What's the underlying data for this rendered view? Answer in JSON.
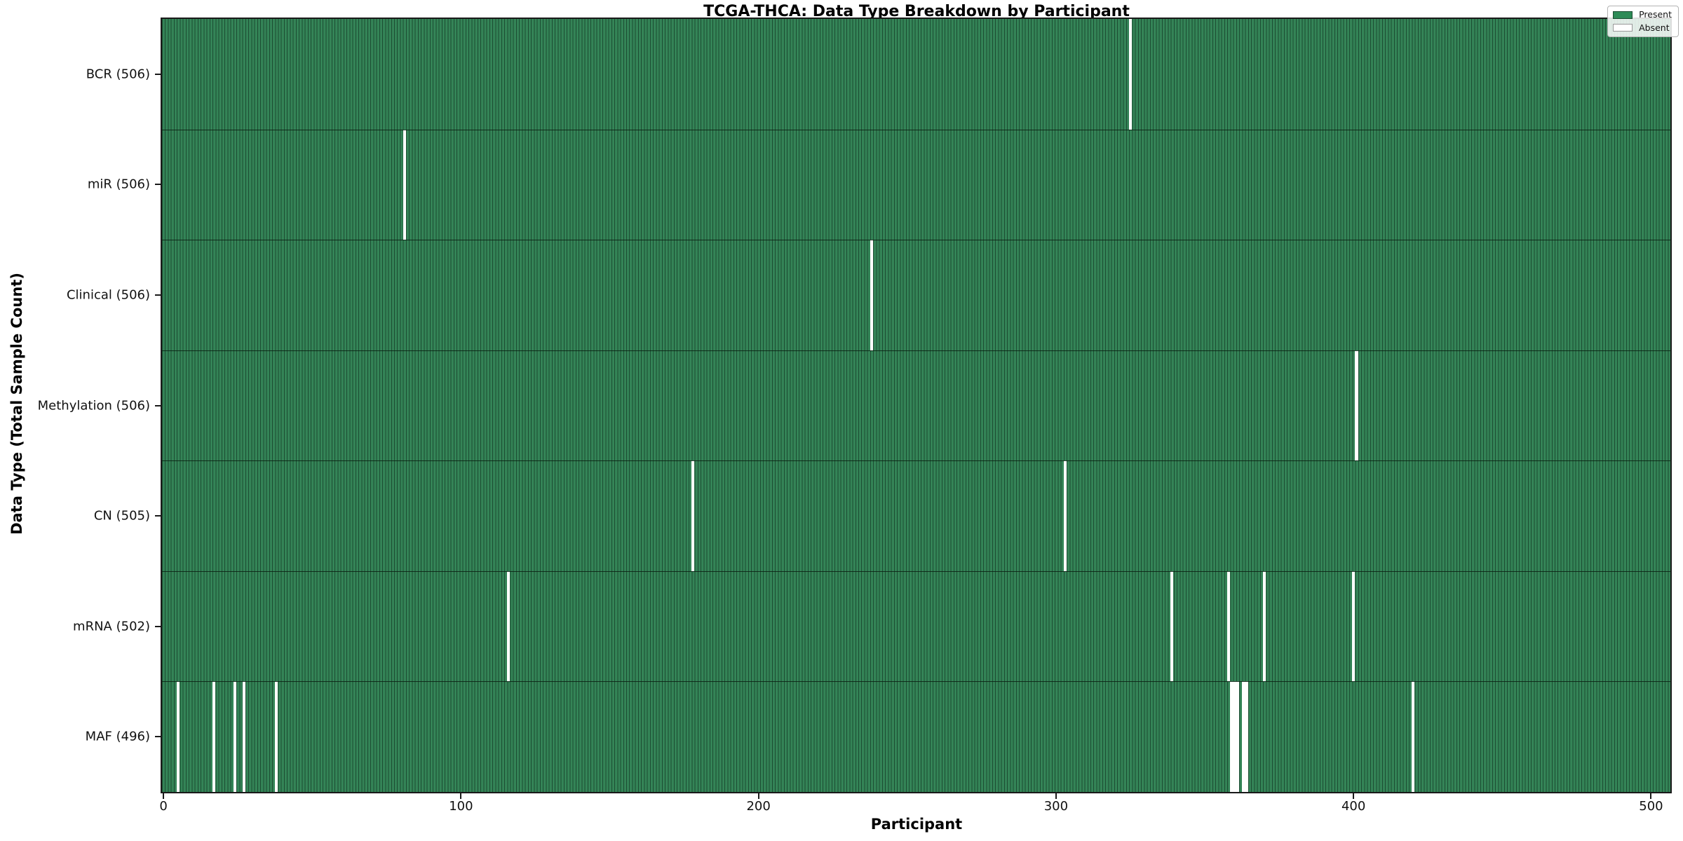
{
  "chart_data": {
    "type": "heatmap",
    "title": "TCGA-THCA: Data Type Breakdown by Participant",
    "xlabel": "Participant",
    "ylabel": "Data Type (Total Sample Count)",
    "n_participants": 507,
    "x_ticks": [
      0,
      100,
      200,
      300,
      400,
      500
    ],
    "x_range": [
      0,
      506
    ],
    "grid": false,
    "legend_position": "upper-right",
    "legend": [
      {
        "label": "Present",
        "color": "#2e8b57"
      },
      {
        "label": "Absent",
        "color": "#ffffff"
      }
    ],
    "rows": [
      {
        "label": "BCR (506)",
        "data_type": "BCR",
        "present_count": 506,
        "absent_count": 1,
        "absent_participants": [
          325
        ]
      },
      {
        "label": "miR (506)",
        "data_type": "miR",
        "present_count": 506,
        "absent_count": 1,
        "absent_participants": [
          81
        ]
      },
      {
        "label": "Clinical (506)",
        "data_type": "Clinical",
        "present_count": 506,
        "absent_count": 1,
        "absent_participants": [
          238
        ]
      },
      {
        "label": "Methylation (506)",
        "data_type": "Methylation",
        "present_count": 506,
        "absent_count": 1,
        "absent_participants": [
          401
        ]
      },
      {
        "label": "CN (505)",
        "data_type": "CN",
        "present_count": 505,
        "absent_count": 2,
        "absent_participants": [
          178,
          303
        ]
      },
      {
        "label": "mRNA (502)",
        "data_type": "mRNA",
        "present_count": 502,
        "absent_count": 5,
        "absent_participants": [
          116,
          339,
          358,
          370,
          400
        ]
      },
      {
        "label": "MAF (496)",
        "data_type": "MAF",
        "present_count": 496,
        "absent_count": 11,
        "absent_participants": [
          5,
          17,
          24,
          27,
          38,
          359,
          360,
          361,
          363,
          364,
          420
        ]
      }
    ],
    "colors": {
      "present": "#2e8b57",
      "present_fill": "#348457",
      "bar_edge": "#1c4c32",
      "absent": "#ffffff",
      "spine": "#1a1a1a"
    }
  }
}
